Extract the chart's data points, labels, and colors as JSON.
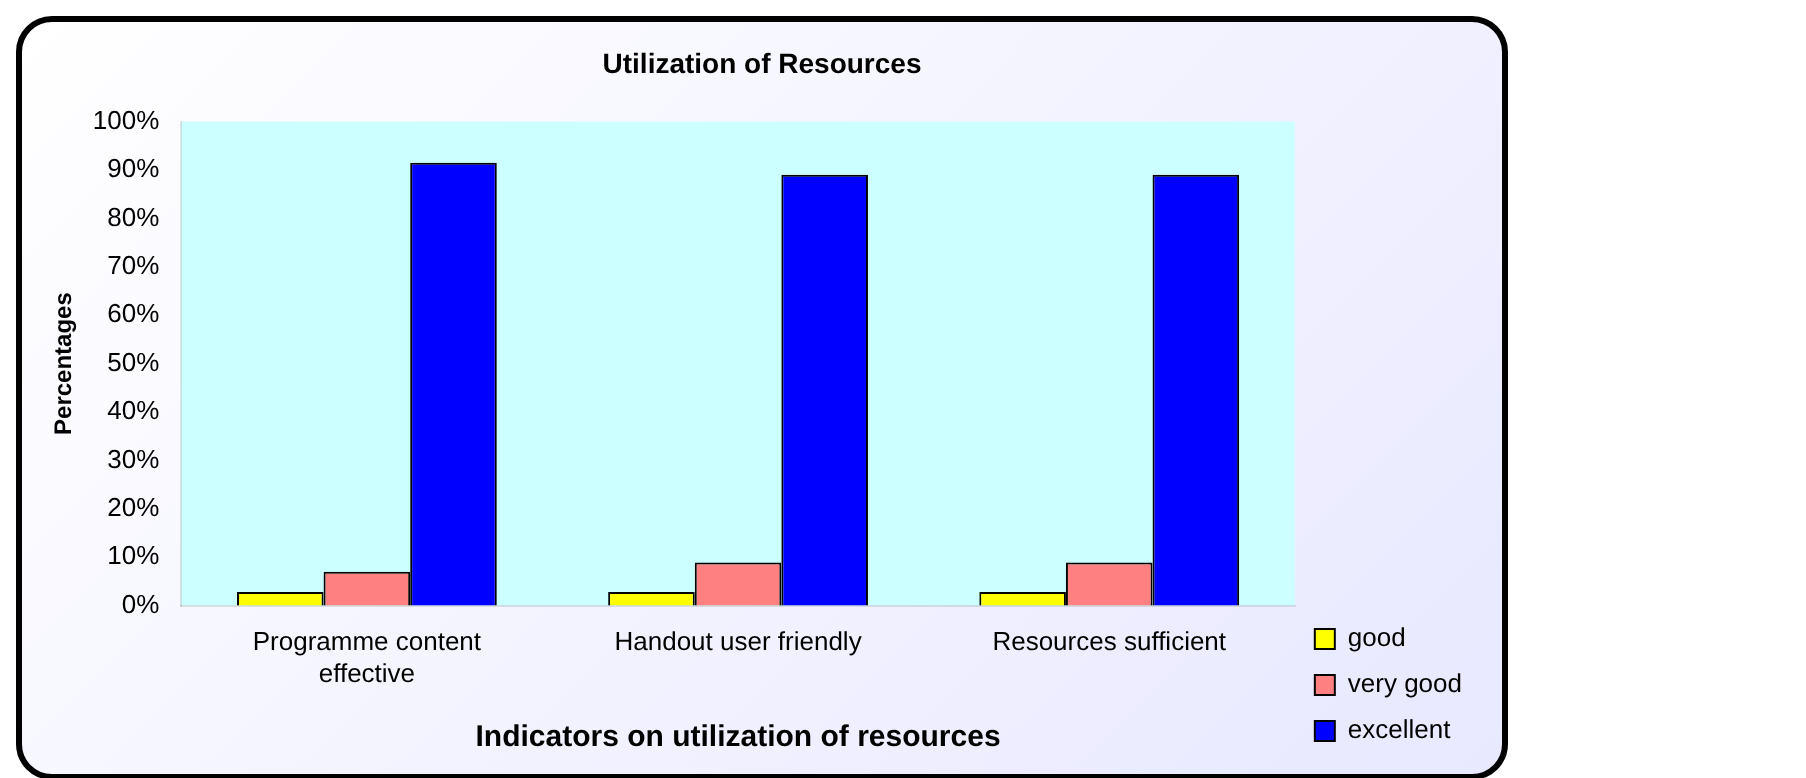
{
  "chart_data": {
    "type": "bar",
    "title": "Utilization of Resources",
    "xlabel": "Indicators on utilization of resources",
    "ylabel": "Percentages",
    "categories": [
      "Programme content effective",
      "Handout user friendly",
      "Resources sufficient"
    ],
    "series": [
      {
        "name": "good",
        "color": "#ffff00",
        "values": [
          2.8,
          2.8,
          2.8
        ]
      },
      {
        "name": "very good",
        "color": "#ff8080",
        "values": [
          7,
          8.9,
          8.9
        ]
      },
      {
        "name": "excellent",
        "color": "#0000ff",
        "values": [
          91.5,
          89,
          89
        ]
      }
    ],
    "ylim": [
      0,
      100
    ],
    "yticks": [
      {
        "value": 0,
        "label": "0%"
      },
      {
        "value": 10,
        "label": "10%"
      },
      {
        "value": 20,
        "label": "20%"
      },
      {
        "value": 30,
        "label": "30%"
      },
      {
        "value": 40,
        "label": "40%"
      },
      {
        "value": 50,
        "label": "50%"
      },
      {
        "value": 60,
        "label": "60%"
      },
      {
        "value": 70,
        "label": "70%"
      },
      {
        "value": 80,
        "label": "80%"
      },
      {
        "value": 90,
        "label": "90%"
      },
      {
        "value": 100,
        "label": "100%"
      }
    ],
    "grid": false,
    "legend": "bottom right"
  }
}
